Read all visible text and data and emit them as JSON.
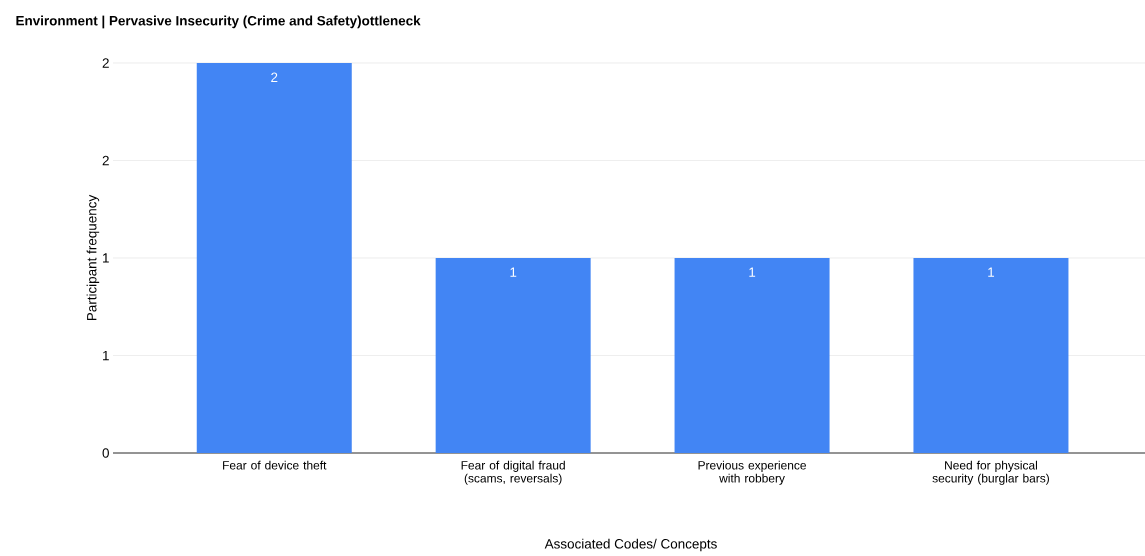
{
  "chart_data": {
    "type": "bar",
    "title": "Environment | Pervasive Insecurity (Crime and Safety)ottleneck",
    "xlabel": "Associated Codes/ Concepts",
    "ylabel": "Participant frequency",
    "categories": [
      "Fear of device theft",
      "Fear of digital fraud (scams, reversals)",
      "Previous experience with robbery",
      "Need for physical security (burglar bars)"
    ],
    "values": [
      2,
      1,
      1,
      1
    ],
    "color": "#4285f4",
    "ylim": [
      0,
      2
    ],
    "yticks": [
      0,
      {
        "value": 0.5,
        "label": "1"
      },
      1,
      {
        "value": 1.5,
        "label": "2"
      },
      2
    ],
    "grid": "y",
    "data_labels": true
  }
}
